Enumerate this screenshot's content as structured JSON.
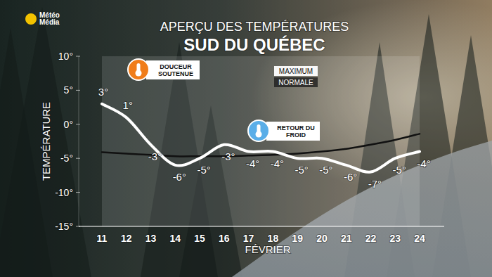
{
  "logo": {
    "lines": [
      "Météo",
      "Média"
    ]
  },
  "chart_data": {
    "type": "line",
    "title": "APERÇU DES TEMPÉRATURES",
    "subtitle": "SUD DU QUÉBEC",
    "y_label": "TEMPÉRATURE",
    "x_label": "FÉVRIER",
    "categories": [
      "11",
      "12",
      "13",
      "14",
      "15",
      "16",
      "17",
      "18",
      "19",
      "20",
      "21",
      "22",
      "23",
      "24"
    ],
    "series": [
      {
        "name": "MAXIMUM",
        "color": "#ffffff",
        "line_style": "solid",
        "values": [
          3,
          1,
          -3,
          -6,
          -5,
          -3,
          -4,
          -4,
          -5,
          -5,
          -6,
          -7,
          -5,
          -4
        ],
        "value_labels": [
          "3°",
          "1°",
          "-3°",
          "-6°",
          "-5°",
          "-3°",
          "-4°",
          "-4°",
          "-5°",
          "-5°",
          "-6°",
          "-7°",
          "-5°",
          "-4°"
        ]
      },
      {
        "name": "NORMALE",
        "color": "#111111",
        "line_style": "solid",
        "values": [
          -4.1,
          -4.3,
          -4.5,
          -4.7,
          -4.7,
          -4.7,
          -4.6,
          -4.5,
          -4.3,
          -4.0,
          -3.6,
          -3.0,
          -2.3,
          -1.4
        ]
      }
    ],
    "ylim": [
      -15,
      10
    ],
    "yticks": [
      {
        "value": -15,
        "label": "-15°"
      },
      {
        "value": -10,
        "label": "-10°"
      },
      {
        "value": -5,
        "label": "-5°"
      },
      {
        "value": 0,
        "label": "0°"
      },
      {
        "value": 5,
        "label": "5°"
      },
      {
        "value": 10,
        "label": "10°"
      }
    ],
    "annotations": [
      "DOUCEUR SOUTENUE",
      "RETOUR DU FROID"
    ],
    "data_labels": true,
    "legend": "top",
    "grid": false
  }
}
